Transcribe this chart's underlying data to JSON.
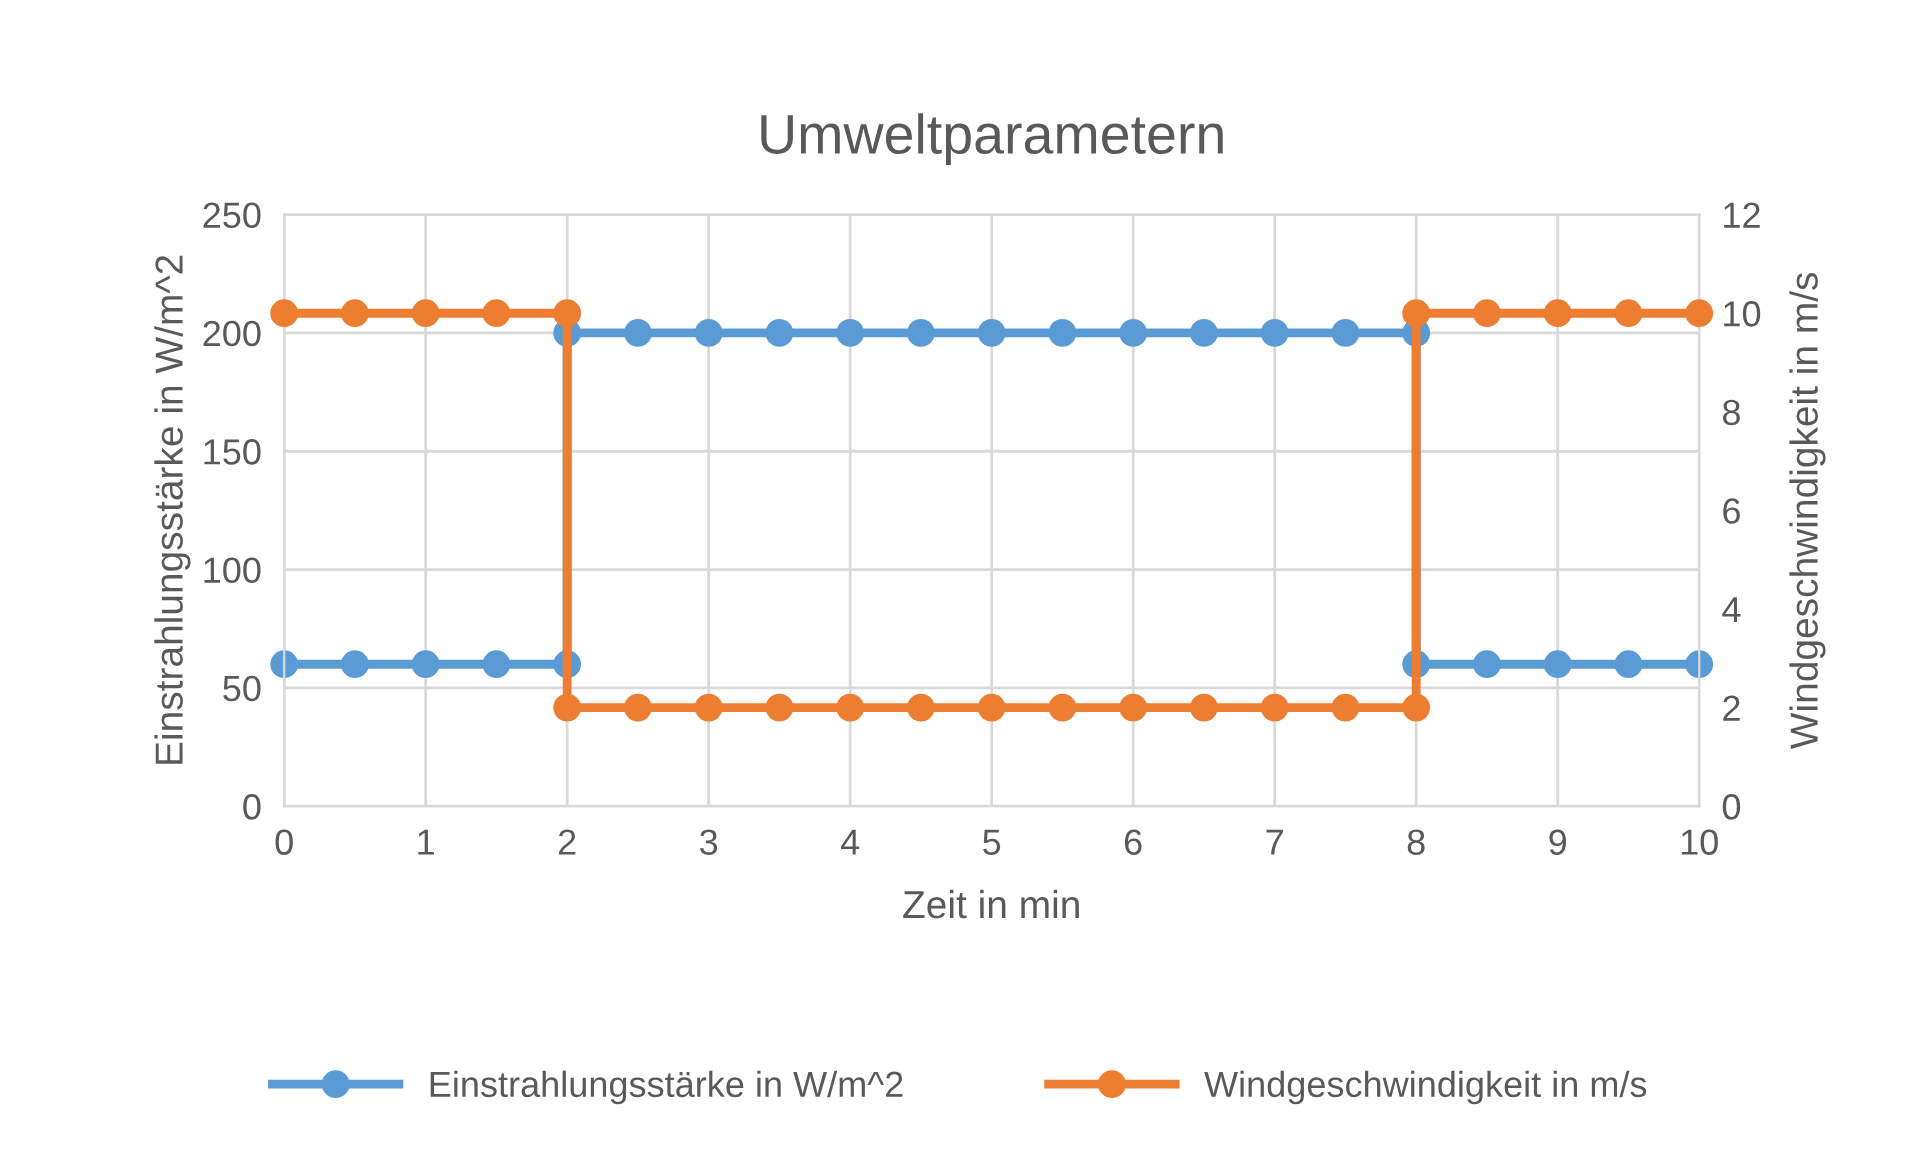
{
  "chart_data": {
    "type": "line",
    "title": "Umweltparametern",
    "xlabel": "Zeit in min",
    "ylabel": "Einstrahlungsstärke in W/m^2",
    "y2label": "Windgeschwindigkeit in m/s",
    "series": [
      {
        "name": "Einstrahlungsstärke in W/m^2",
        "color": "#5b9bd5",
        "x": [
          0,
          0.5,
          1,
          1.5,
          2,
          2,
          2.5,
          3,
          3.5,
          4,
          4.5,
          5,
          5.5,
          6,
          6.5,
          7,
          7.5,
          8,
          8,
          8.5,
          9,
          9.5,
          10
        ],
        "values": [
          60,
          60,
          60,
          60,
          60,
          200,
          200,
          200,
          200,
          200,
          200,
          200,
          200,
          200,
          200,
          200,
          200,
          200,
          60,
          60,
          60,
          60,
          60
        ]
      },
      {
        "name": "Windgeschwindigkeit in m/s",
        "color": "#ed7d31",
        "axis": "y2",
        "x": [
          0,
          0.5,
          1,
          1.5,
          2,
          2,
          2.5,
          3,
          3.5,
          4,
          4.5,
          5,
          5.5,
          6,
          6.5,
          7,
          7.5,
          8,
          8,
          8.5,
          9,
          9.5,
          10
        ],
        "values": [
          10,
          10,
          10,
          10,
          10,
          2,
          2,
          2,
          2,
          2,
          2,
          2,
          2,
          2,
          2,
          2,
          2,
          2,
          10,
          10,
          10,
          10,
          10
        ]
      }
    ],
    "xlim": [
      0,
      10
    ],
    "xticks": [
      0,
      1,
      2,
      3,
      4,
      5,
      6,
      7,
      8,
      9,
      10
    ],
    "ylim": [
      0,
      250
    ],
    "yticks": [
      0,
      50,
      100,
      150,
      200,
      250
    ],
    "y2lim": [
      0,
      12
    ],
    "y2ticks": [
      0,
      2,
      4,
      6,
      8,
      10,
      12
    ],
    "grid": true,
    "legend": "bottom",
    "marker": "circle",
    "line_style": "solid"
  }
}
